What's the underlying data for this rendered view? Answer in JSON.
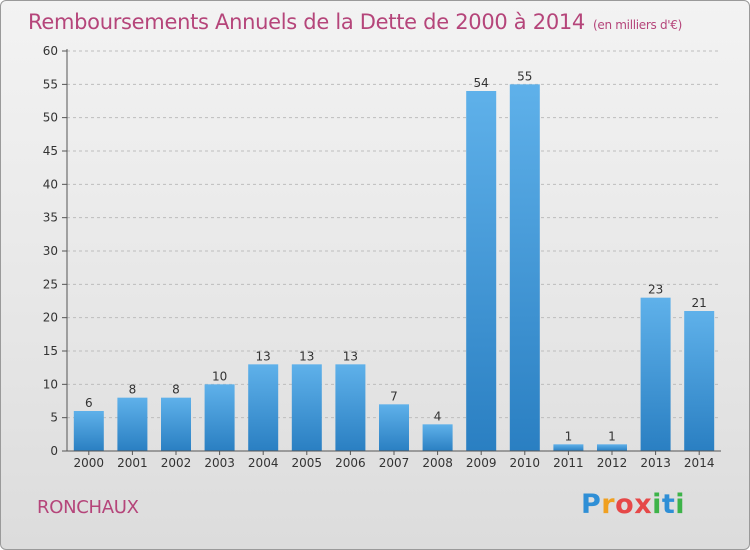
{
  "header": {
    "title": "Remboursements Annuels de la Dette de 2000 à 2014",
    "unit": "(en milliers d'€)"
  },
  "footer": {
    "place": "RONCHAUX",
    "logo_letters": [
      "P",
      "r",
      "o",
      "x",
      "i",
      "t",
      "i"
    ],
    "logo_colors": [
      "#2f8fd6",
      "#f0a020",
      "#e64848",
      "#e64848",
      "#3db349",
      "#2f8fd6",
      "#3db349"
    ]
  },
  "colors": {
    "bar_top": "#5fb1ea",
    "bar_bottom": "#2a7fc2",
    "axis": "#555555",
    "grid": "#bdbdbd",
    "tick_text": "#333333"
  },
  "chart_data": {
    "type": "bar",
    "categories": [
      "2000",
      "2001",
      "2002",
      "2003",
      "2004",
      "2005",
      "2006",
      "2007",
      "2008",
      "2009",
      "2010",
      "2011",
      "2012",
      "2013",
      "2014"
    ],
    "values": [
      6,
      8,
      8,
      10,
      13,
      13,
      13,
      7,
      4,
      54,
      55,
      1,
      1,
      23,
      21
    ],
    "yticks": [
      0,
      5,
      10,
      15,
      20,
      25,
      30,
      35,
      40,
      45,
      50,
      55,
      60
    ],
    "ylim": [
      0,
      60
    ],
    "grid": "horizontal dashed"
  }
}
